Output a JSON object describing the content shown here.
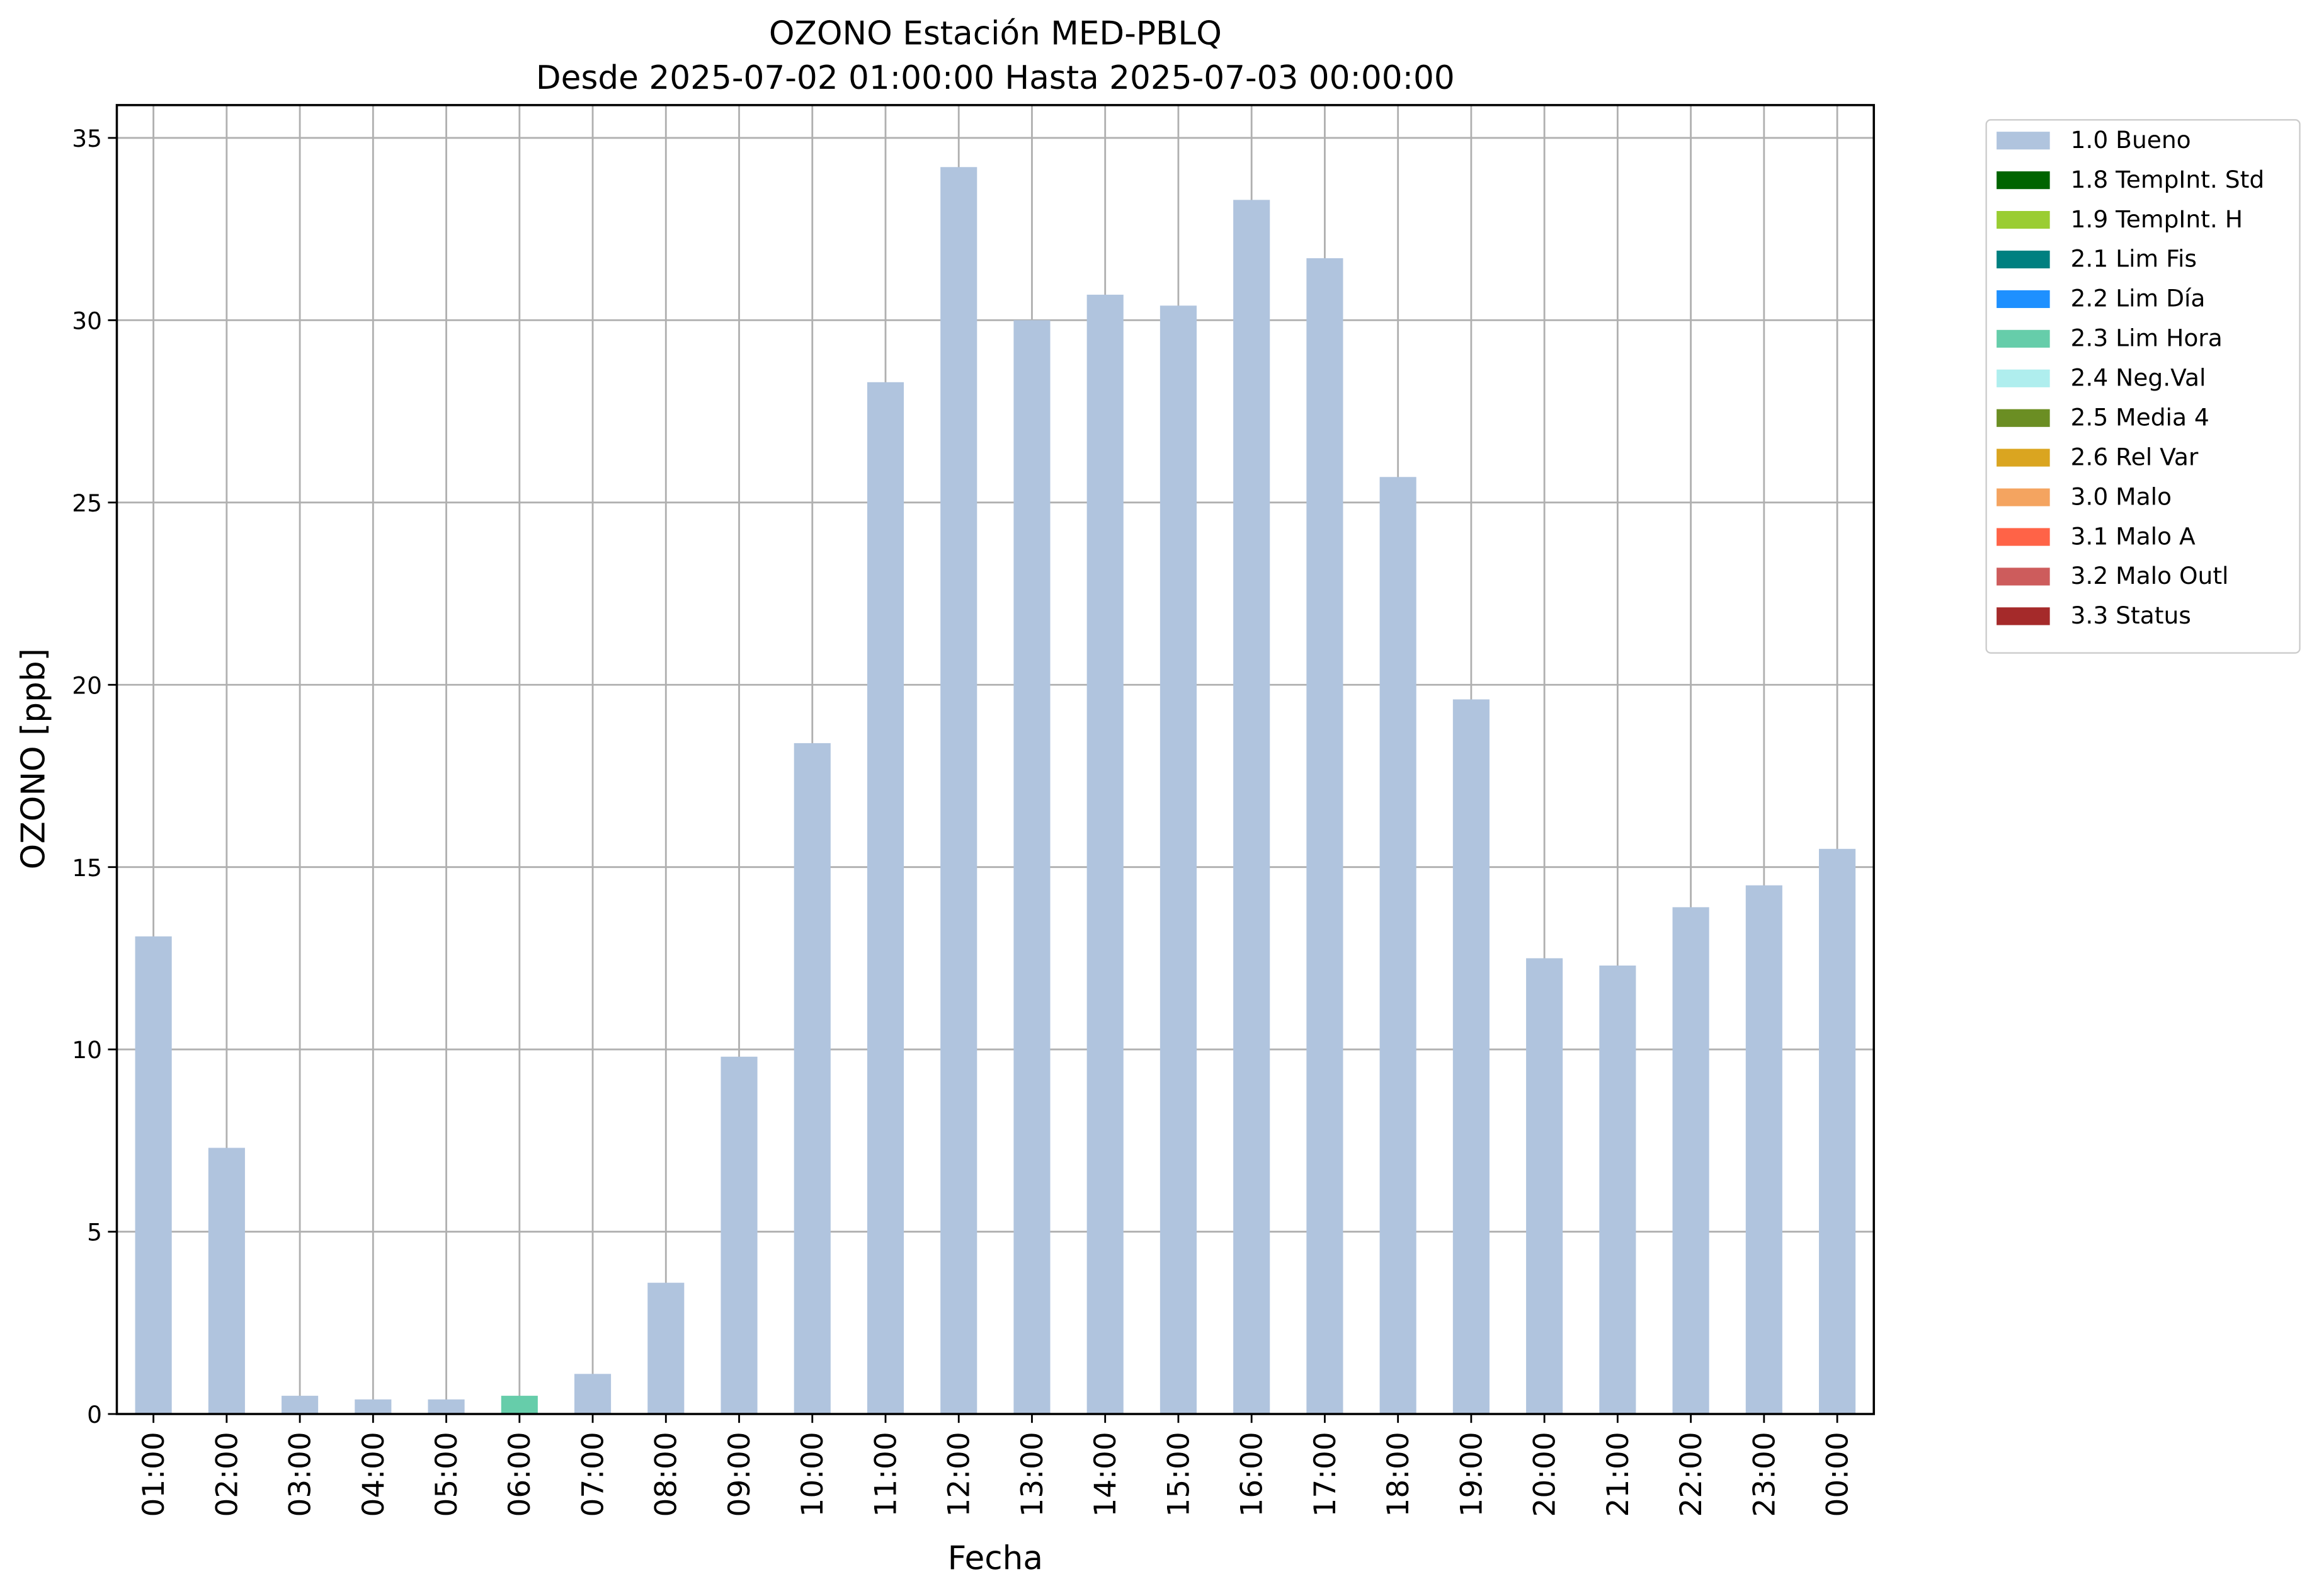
{
  "chart_data": {
    "type": "bar",
    "stacked": true,
    "title": "OZONO Estación MED-PBLQ",
    "subtitle": "Desde 2025-07-02 01:00:00 Hasta 2025-07-03 00:00:00",
    "xlabel": "Fecha",
    "ylabel": "OZONO [ppb]",
    "categories": [
      "01:00",
      "02:00",
      "03:00",
      "04:00",
      "05:00",
      "06:00",
      "07:00",
      "08:00",
      "09:00",
      "10:00",
      "11:00",
      "12:00",
      "13:00",
      "14:00",
      "15:00",
      "16:00",
      "17:00",
      "18:00",
      "19:00",
      "20:00",
      "21:00",
      "22:00",
      "23:00",
      "00:00"
    ],
    "series": [
      {
        "name": "1.0 Bueno",
        "color": "#b0c4de",
        "values": [
          13.1,
          7.3,
          0.5,
          0.4,
          0.4,
          null,
          1.1,
          3.6,
          9.8,
          18.4,
          28.3,
          34.2,
          30.0,
          30.7,
          30.4,
          33.3,
          31.7,
          25.7,
          19.6,
          12.5,
          12.3,
          13.9,
          14.5,
          15.5
        ]
      },
      {
        "name": "1.8 TempInt. Std",
        "color": "#006400",
        "values": [
          null,
          null,
          null,
          null,
          null,
          null,
          null,
          null,
          null,
          null,
          null,
          null,
          null,
          null,
          null,
          null,
          null,
          null,
          null,
          null,
          null,
          null,
          null,
          null
        ]
      },
      {
        "name": "1.9 TempInt. H",
        "color": "#9acd32",
        "values": [
          null,
          null,
          null,
          null,
          null,
          null,
          null,
          null,
          null,
          null,
          null,
          null,
          null,
          null,
          null,
          null,
          null,
          null,
          null,
          null,
          null,
          null,
          null,
          null
        ]
      },
      {
        "name": "2.1 Lim Fis",
        "color": "#008080",
        "values": [
          null,
          null,
          null,
          null,
          null,
          null,
          null,
          null,
          null,
          null,
          null,
          null,
          null,
          null,
          null,
          null,
          null,
          null,
          null,
          null,
          null,
          null,
          null,
          null
        ]
      },
      {
        "name": "2.2 Lim Día",
        "color": "#1e90ff",
        "values": [
          null,
          null,
          null,
          null,
          null,
          null,
          null,
          null,
          null,
          null,
          null,
          null,
          null,
          null,
          null,
          null,
          null,
          null,
          null,
          null,
          null,
          null,
          null,
          null
        ]
      },
      {
        "name": "2.3 Lim Hora",
        "color": "#66cdaa",
        "values": [
          null,
          null,
          null,
          null,
          null,
          0.5,
          null,
          null,
          null,
          null,
          null,
          null,
          null,
          null,
          null,
          null,
          null,
          null,
          null,
          null,
          null,
          null,
          null,
          null
        ]
      },
      {
        "name": "2.4 Neg.Val",
        "color": "#afeeee",
        "values": [
          null,
          null,
          null,
          null,
          null,
          null,
          null,
          null,
          null,
          null,
          null,
          null,
          null,
          null,
          null,
          null,
          null,
          null,
          null,
          null,
          null,
          null,
          null,
          null
        ]
      },
      {
        "name": "2.5 Media 4",
        "color": "#6b8e23",
        "values": [
          null,
          null,
          null,
          null,
          null,
          null,
          null,
          null,
          null,
          null,
          null,
          null,
          null,
          null,
          null,
          null,
          null,
          null,
          null,
          null,
          null,
          null,
          null,
          null
        ]
      },
      {
        "name": "2.6 Rel Var",
        "color": "#daa520",
        "values": [
          null,
          null,
          null,
          null,
          null,
          null,
          null,
          null,
          null,
          null,
          null,
          null,
          null,
          null,
          null,
          null,
          null,
          null,
          null,
          null,
          null,
          null,
          null,
          null
        ]
      },
      {
        "name": "3.0 Malo",
        "color": "#f4a460",
        "values": [
          null,
          null,
          null,
          null,
          null,
          null,
          null,
          null,
          null,
          null,
          null,
          null,
          null,
          null,
          null,
          null,
          null,
          null,
          null,
          null,
          null,
          null,
          null,
          null
        ]
      },
      {
        "name": "3.1 Malo A",
        "color": "#ff6347",
        "values": [
          null,
          null,
          null,
          null,
          null,
          null,
          null,
          null,
          null,
          null,
          null,
          null,
          null,
          null,
          null,
          null,
          null,
          null,
          null,
          null,
          null,
          null,
          null,
          null
        ]
      },
      {
        "name": "3.2 Malo Outl",
        "color": "#cd5c5c",
        "values": [
          null,
          null,
          null,
          null,
          null,
          null,
          null,
          null,
          null,
          null,
          null,
          null,
          null,
          null,
          null,
          null,
          null,
          null,
          null,
          null,
          null,
          null,
          null,
          null
        ]
      },
      {
        "name": "3.3 Status",
        "color": "#a52a2a",
        "values": [
          null,
          null,
          null,
          null,
          null,
          null,
          null,
          null,
          null,
          null,
          null,
          null,
          null,
          null,
          null,
          null,
          null,
          null,
          null,
          null,
          null,
          null,
          null,
          null
        ]
      }
    ],
    "ylim": [
      0,
      35.9
    ],
    "yticks": [
      0,
      5,
      10,
      15,
      20,
      25,
      30,
      35
    ],
    "grid": true,
    "legend": "outside upper right"
  }
}
